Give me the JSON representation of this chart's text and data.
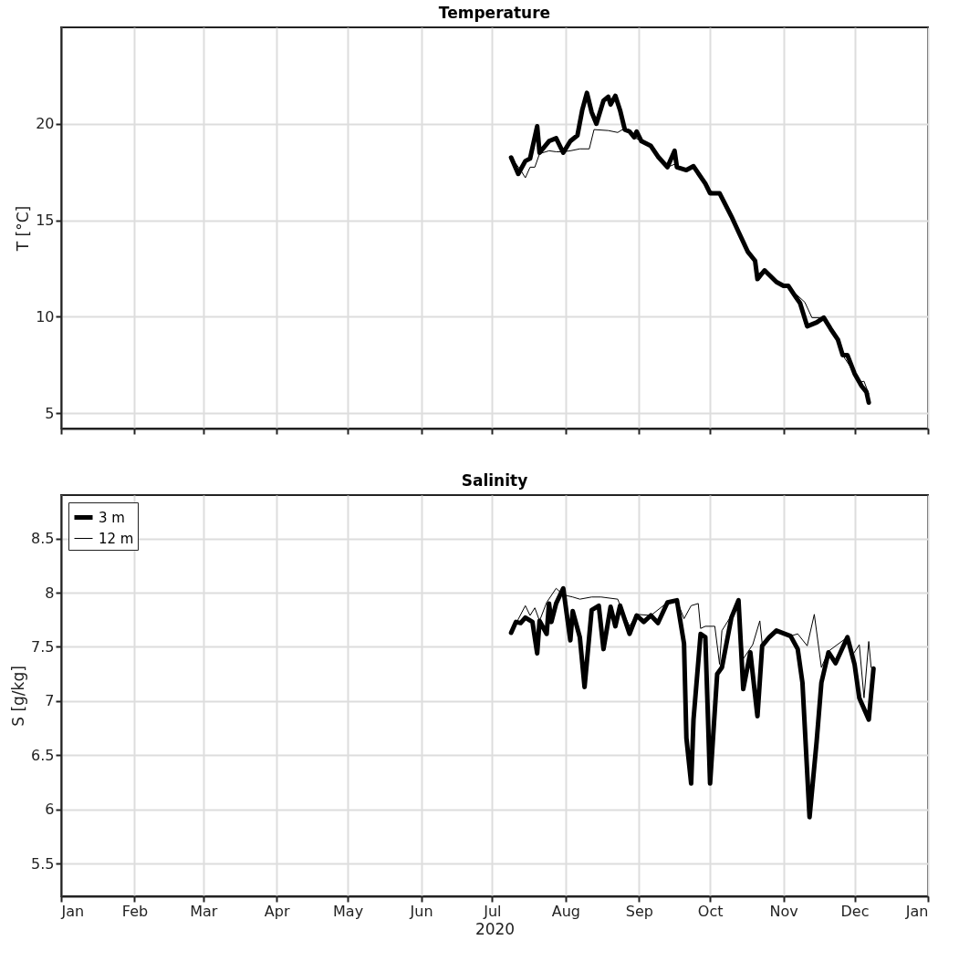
{
  "chart_data": [
    {
      "type": "line",
      "title": "Temperature",
      "ylabel": "T [°C]",
      "xlim": [
        "2020-01-01",
        "2021-01-01"
      ],
      "xticks": [
        {
          "value": "2020-01-01",
          "label": null
        },
        {
          "value": "2020-02-01",
          "label": null
        },
        {
          "value": "2020-03-01",
          "label": null
        },
        {
          "value": "2020-04-01",
          "label": null
        },
        {
          "value": "2020-05-01",
          "label": null
        },
        {
          "value": "2020-06-01",
          "label": null
        },
        {
          "value": "2020-07-01",
          "label": null
        },
        {
          "value": "2020-08-01",
          "label": null
        },
        {
          "value": "2020-09-01",
          "label": null
        },
        {
          "value": "2020-10-01",
          "label": null
        },
        {
          "value": "2020-11-01",
          "label": null
        },
        {
          "value": "2020-12-01",
          "label": null
        },
        {
          "value": "2021-01-01",
          "label": null
        }
      ],
      "ylim": [
        4.2,
        25
      ],
      "yticks": [
        5,
        10,
        15,
        20
      ],
      "grid": true,
      "legend": false,
      "tick_labels": "y",
      "series": [
        {
          "color": "#000000",
          "x": [
            "2020-07-09",
            "2020-07-12",
            "2020-07-15",
            "2020-07-17",
            "2020-07-20",
            "2020-07-21",
            "2020-07-25",
            "2020-07-28",
            "2020-07-31",
            "2020-08-03",
            "2020-08-06",
            "2020-08-08",
            "2020-08-10",
            "2020-08-12",
            "2020-08-14",
            "2020-08-17",
            "2020-08-19",
            "2020-08-20",
            "2020-08-22",
            "2020-08-24",
            "2020-08-26",
            "2020-08-28",
            "2020-08-30",
            "2020-08-31",
            "2020-09-02",
            "2020-09-06",
            "2020-09-09",
            "2020-09-13",
            "2020-09-16",
            "2020-09-17",
            "2020-09-21",
            "2020-09-24",
            "2020-09-29",
            "2020-10-01",
            "2020-10-05",
            "2020-10-10",
            "2020-10-13",
            "2020-10-17",
            "2020-10-20",
            "2020-10-21",
            "2020-10-24",
            "2020-10-29",
            "2020-11-01",
            "2020-11-03",
            "2020-11-06",
            "2020-11-08",
            "2020-11-11",
            "2020-11-15",
            "2020-11-18",
            "2020-11-21",
            "2020-11-24",
            "2020-11-26",
            "2020-11-28",
            "2020-12-01",
            "2020-12-04",
            "2020-12-06",
            "2020-12-07"
          ],
          "values": [
            18.25,
            17.4,
            18.07,
            18.2,
            19.87,
            18.5,
            19.1,
            19.25,
            18.5,
            19.1,
            19.4,
            20.7,
            21.6,
            20.6,
            20.0,
            21.2,
            21.4,
            21.0,
            21.45,
            20.7,
            19.7,
            19.6,
            19.3,
            19.6,
            19.1,
            18.85,
            18.3,
            17.75,
            18.6,
            17.75,
            17.6,
            17.8,
            16.9,
            16.4,
            16.4,
            15.2,
            14.4,
            13.35,
            12.9,
            11.95,
            12.4,
            11.8,
            11.6,
            11.6,
            11.05,
            10.7,
            9.5,
            9.7,
            9.95,
            9.35,
            8.8,
            8.0,
            8.0,
            7.05,
            6.4,
            6.1,
            5.55
          ]
        },
        {
          "color": "#000000",
          "x": [
            "2020-07-09",
            "2020-07-13",
            "2020-07-15",
            "2020-07-17",
            "2020-07-19",
            "2020-07-21",
            "2020-07-25",
            "2020-07-28",
            "2020-07-31",
            "2020-08-03",
            "2020-08-07",
            "2020-08-11",
            "2020-08-13",
            "2020-08-19",
            "2020-08-23",
            "2020-08-25",
            "2020-08-28",
            "2020-08-30",
            "2020-09-02",
            "2020-09-06",
            "2020-09-09",
            "2020-09-13",
            "2020-09-16",
            "2020-09-21",
            "2020-09-24",
            "2020-09-29",
            "2020-10-01",
            "2020-10-05",
            "2020-10-10",
            "2020-10-13",
            "2020-10-17",
            "2020-10-20",
            "2020-10-21",
            "2020-10-24",
            "2020-10-29",
            "2020-11-01",
            "2020-11-03",
            "2020-11-06",
            "2020-11-10",
            "2020-11-13",
            "2020-11-18",
            "2020-11-21",
            "2020-11-24",
            "2020-11-26",
            "2020-11-29",
            "2020-12-03",
            "2020-12-05",
            "2020-12-07"
          ],
          "values": [
            18.25,
            17.6,
            17.2,
            17.75,
            17.75,
            18.45,
            18.6,
            18.55,
            18.55,
            18.6,
            18.7,
            18.7,
            19.7,
            19.65,
            19.55,
            19.7,
            19.6,
            19.3,
            19.1,
            18.85,
            18.3,
            17.75,
            17.9,
            17.6,
            17.8,
            16.9,
            16.5,
            16.4,
            15.2,
            14.4,
            13.35,
            12.9,
            12.2,
            12.4,
            11.8,
            11.6,
            11.6,
            11.2,
            10.75,
            9.95,
            9.95,
            9.35,
            8.8,
            8.0,
            7.45,
            6.6,
            6.65,
            6.0
          ]
        }
      ]
    },
    {
      "type": "line",
      "title": "Salinity",
      "xlabel": "2020",
      "ylabel": "S [g/kg]",
      "xlim": [
        "2020-01-01",
        "2021-01-01"
      ],
      "xticks": [
        {
          "value": "2020-01-01",
          "label": "Jan"
        },
        {
          "value": "2020-02-01",
          "label": "Feb"
        },
        {
          "value": "2020-03-01",
          "label": "Mar"
        },
        {
          "value": "2020-04-01",
          "label": "Apr"
        },
        {
          "value": "2020-05-01",
          "label": "May"
        },
        {
          "value": "2020-06-01",
          "label": "Jun"
        },
        {
          "value": "2020-07-01",
          "label": "Jul"
        },
        {
          "value": "2020-08-01",
          "label": "Aug"
        },
        {
          "value": "2020-09-01",
          "label": "Sep"
        },
        {
          "value": "2020-10-01",
          "label": "Oct"
        },
        {
          "value": "2020-11-01",
          "label": "Nov"
        },
        {
          "value": "2020-12-01",
          "label": "Dec"
        },
        {
          "value": "2021-01-01",
          "label": "Jan"
        }
      ],
      "ylim": [
        5.2,
        8.9
      ],
      "yticks": [
        5.5,
        6,
        6.5,
        7,
        7.5,
        8,
        8.5
      ],
      "grid": true,
      "legend": "top left",
      "series": [
        {
          "name": "3 m",
          "color": "#000000",
          "x": [
            "2020-07-09",
            "2020-07-11",
            "2020-07-13",
            "2020-07-15",
            "2020-07-18",
            "2020-07-20",
            "2020-07-21",
            "2020-07-24",
            "2020-07-25",
            "2020-07-26",
            "2020-07-28",
            "2020-07-31",
            "2020-08-03",
            "2020-08-04",
            "2020-08-07",
            "2020-08-09",
            "2020-08-12",
            "2020-08-15",
            "2020-08-17",
            "2020-08-20",
            "2020-08-22",
            "2020-08-24",
            "2020-08-28",
            "2020-08-31",
            "2020-09-03",
            "2020-09-06",
            "2020-09-09",
            "2020-09-13",
            "2020-09-17",
            "2020-09-20",
            "2020-09-21",
            "2020-09-23",
            "2020-09-24",
            "2020-09-27",
            "2020-09-29",
            "2020-10-01",
            "2020-10-04",
            "2020-10-06",
            "2020-10-10",
            "2020-10-13",
            "2020-10-15",
            "2020-10-18",
            "2020-10-21",
            "2020-10-23",
            "2020-10-26",
            "2020-10-29",
            "2020-11-04",
            "2020-11-07",
            "2020-11-09",
            "2020-11-12",
            "2020-11-15",
            "2020-11-17",
            "2020-11-20",
            "2020-11-23",
            "2020-11-28",
            "2020-12-01",
            "2020-12-03",
            "2020-12-07",
            "2020-12-09"
          ],
          "values": [
            7.63,
            7.73,
            7.72,
            7.77,
            7.73,
            7.44,
            7.74,
            7.62,
            7.9,
            7.73,
            7.9,
            8.04,
            7.56,
            7.83,
            7.59,
            7.13,
            7.84,
            7.88,
            7.48,
            7.87,
            7.69,
            7.88,
            7.62,
            7.79,
            7.73,
            7.79,
            7.72,
            7.91,
            7.93,
            7.53,
            6.66,
            6.24,
            6.83,
            7.62,
            7.59,
            6.24,
            7.25,
            7.31,
            7.77,
            7.93,
            7.11,
            7.45,
            6.86,
            7.51,
            7.59,
            7.65,
            7.6,
            7.48,
            7.17,
            5.93,
            6.63,
            7.17,
            7.45,
            7.35,
            7.59,
            7.34,
            7.03,
            6.83,
            7.3
          ]
        },
        {
          "name": "12 m",
          "color": "#000000",
          "x": [
            "2020-07-09",
            "2020-07-15",
            "2020-07-17",
            "2020-07-19",
            "2020-07-21",
            "2020-07-24",
            "2020-07-28",
            "2020-07-31",
            "2020-08-04",
            "2020-08-07",
            "2020-08-12",
            "2020-08-16",
            "2020-08-23",
            "2020-08-25",
            "2020-08-28",
            "2020-08-31",
            "2020-09-06",
            "2020-09-13",
            "2020-09-17",
            "2020-09-20",
            "2020-09-23",
            "2020-09-26",
            "2020-09-27",
            "2020-09-29",
            "2020-10-03",
            "2020-10-05",
            "2020-10-06",
            "2020-10-10",
            "2020-10-13",
            "2020-10-15",
            "2020-10-19",
            "2020-10-22",
            "2020-10-23",
            "2020-10-29",
            "2020-11-04",
            "2020-11-07",
            "2020-11-11",
            "2020-11-14",
            "2020-11-17",
            "2020-11-20",
            "2020-11-28",
            "2020-11-30",
            "2020-12-03",
            "2020-12-05",
            "2020-12-07",
            "2020-12-08"
          ],
          "values": [
            7.63,
            7.88,
            7.79,
            7.86,
            7.74,
            7.91,
            8.04,
            7.98,
            7.96,
            7.94,
            7.96,
            7.96,
            7.94,
            7.83,
            7.69,
            7.8,
            7.79,
            7.91,
            7.93,
            7.76,
            7.88,
            7.9,
            7.67,
            7.69,
            7.69,
            7.34,
            7.65,
            7.79,
            7.93,
            7.39,
            7.52,
            7.74,
            7.53,
            7.65,
            7.6,
            7.62,
            7.51,
            7.8,
            7.31,
            7.46,
            7.59,
            7.42,
            7.52,
            7.03,
            7.55,
            7.31
          ]
        }
      ]
    }
  ]
}
